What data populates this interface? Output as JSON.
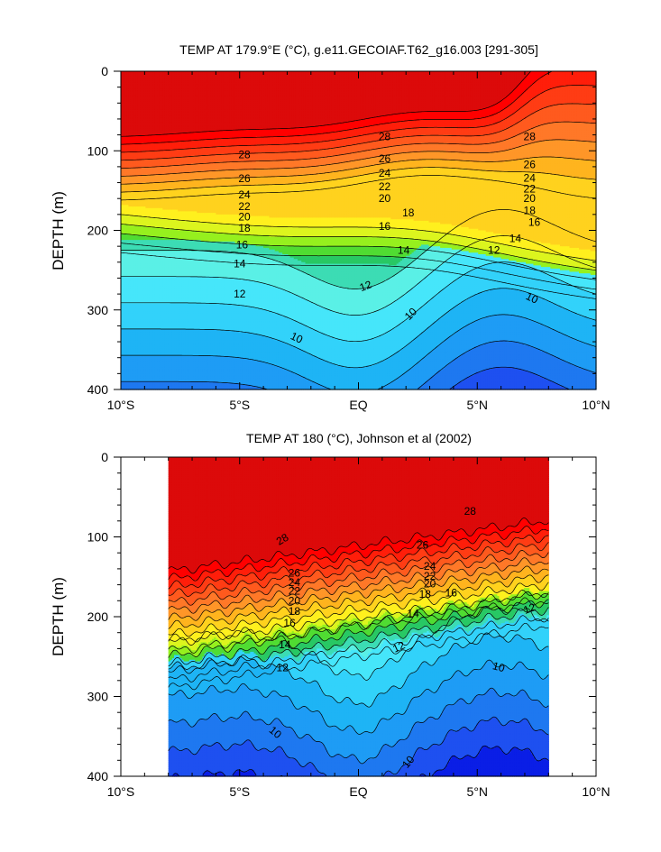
{
  "chart_data": [
    {
      "type": "contour",
      "title": "TEMP AT 179.9°E (°C), g.e11.GECOIAF.T62_g16.003 [291-305]",
      "ylabel": "DEPTH (m)",
      "xlim": [
        -10,
        10
      ],
      "ylim": [
        0,
        400
      ],
      "y_reversed": true,
      "x_ticks": [
        -10,
        -5,
        0,
        5,
        10
      ],
      "x_tick_labels": [
        "10°S",
        "5°S",
        "EQ",
        "5°N",
        "10°N"
      ],
      "y_ticks": [
        0,
        100,
        200,
        300,
        400
      ],
      "y_tick_labels": [
        "0",
        "100",
        "200",
        "300",
        "400"
      ],
      "data_xrange": [
        -10,
        10
      ],
      "levels": [
        8,
        9,
        10,
        11,
        12,
        13,
        14,
        15,
        16,
        17,
        18,
        19,
        20,
        21,
        22,
        23,
        24,
        25,
        26,
        27,
        28,
        29
      ],
      "fill_colors": [
        "#0a1ee6",
        "#1e50f0",
        "#1e78f0",
        "#1e9cf5",
        "#1eb4f5",
        "#32d2fa",
        "#46e6fa",
        "#5af0e6",
        "#3cdcb4",
        "#28c864",
        "#50dc32",
        "#96f01e",
        "#dcf51e",
        "#fff01e",
        "#ffd21e",
        "#ffb41e",
        "#ff9628",
        "#ff7828",
        "#ff5a1e",
        "#ff3c14",
        "#ff1e0a",
        "#ff0000",
        "#dc0a0a"
      ],
      "labels": [
        {
          "text": "28",
          "x": -4.8,
          "y": 105,
          "rot": 0
        },
        {
          "text": "28",
          "x": 1.1,
          "y": 82,
          "rot": 0
        },
        {
          "text": "28",
          "x": 7.2,
          "y": 82,
          "rot": 0
        },
        {
          "text": "26",
          "x": -4.8,
          "y": 135,
          "rot": 0
        },
        {
          "text": "26",
          "x": 1.1,
          "y": 110,
          "rot": 0
        },
        {
          "text": "26",
          "x": 7.2,
          "y": 117,
          "rot": 0
        },
        {
          "text": "24",
          "x": -4.8,
          "y": 155,
          "rot": 0
        },
        {
          "text": "24",
          "x": 1.1,
          "y": 128,
          "rot": 0
        },
        {
          "text": "24",
          "x": 7.2,
          "y": 134,
          "rot": 0
        },
        {
          "text": "22",
          "x": -4.8,
          "y": 170,
          "rot": 0
        },
        {
          "text": "22",
          "x": 1.1,
          "y": 145,
          "rot": 0
        },
        {
          "text": "22",
          "x": 7.2,
          "y": 148,
          "rot": 0
        },
        {
          "text": "20",
          "x": -4.8,
          "y": 183,
          "rot": 0
        },
        {
          "text": "20",
          "x": 1.1,
          "y": 160,
          "rot": 0
        },
        {
          "text": "20",
          "x": 7.2,
          "y": 160,
          "rot": 0
        },
        {
          "text": "18",
          "x": -4.8,
          "y": 197,
          "rot": 0
        },
        {
          "text": "18",
          "x": 2.1,
          "y": 178,
          "rot": 0
        },
        {
          "text": "18",
          "x": 7.2,
          "y": 175,
          "rot": 0
        },
        {
          "text": "16",
          "x": -4.9,
          "y": 218,
          "rot": 0
        },
        {
          "text": "16",
          "x": 1.1,
          "y": 195,
          "rot": 0
        },
        {
          "text": "16",
          "x": 7.4,
          "y": 190,
          "rot": 0
        },
        {
          "text": "14",
          "x": -5.0,
          "y": 242,
          "rot": 0
        },
        {
          "text": "14",
          "x": 1.9,
          "y": 225,
          "rot": 0
        },
        {
          "text": "14",
          "x": 6.6,
          "y": 210,
          "rot": 0
        },
        {
          "text": "12",
          "x": -5.0,
          "y": 280,
          "rot": 0
        },
        {
          "text": "12",
          "x": 0.3,
          "y": 270,
          "rot": -20
        },
        {
          "text": "12",
          "x": 5.7,
          "y": 225,
          "rot": 0
        },
        {
          "text": "10",
          "x": -2.6,
          "y": 335,
          "rot": 25
        },
        {
          "text": "10",
          "x": 2.2,
          "y": 305,
          "rot": -45
        },
        {
          "text": "10",
          "x": 7.3,
          "y": 285,
          "rot": 25
        }
      ]
    },
    {
      "type": "contour",
      "title": "TEMP AT 180 (°C), Johnson et al (2002)",
      "ylabel": "DEPTH (m)",
      "xlim": [
        -10,
        10
      ],
      "ylim": [
        0,
        400
      ],
      "y_reversed": true,
      "x_ticks": [
        -10,
        -5,
        0,
        5,
        10
      ],
      "x_tick_labels": [
        "10°S",
        "5°S",
        "EQ",
        "5°N",
        "10°N"
      ],
      "y_ticks": [
        0,
        100,
        200,
        300,
        400
      ],
      "y_tick_labels": [
        "0",
        "100",
        "200",
        "300",
        "400"
      ],
      "data_xrange": [
        -8,
        8
      ],
      "levels": [
        8,
        9,
        10,
        11,
        12,
        13,
        14,
        15,
        16,
        17,
        18,
        19,
        20,
        21,
        22,
        23,
        24,
        25,
        26,
        27,
        28,
        29
      ],
      "fill_colors": [
        "#0a1ee6",
        "#1e50f0",
        "#1e78f0",
        "#1e9cf5",
        "#1eb4f5",
        "#32d2fa",
        "#46e6fa",
        "#5af0e6",
        "#3cdcb4",
        "#28c864",
        "#50dc32",
        "#96f01e",
        "#dcf51e",
        "#fff01e",
        "#ffd21e",
        "#ffb41e",
        "#ff9628",
        "#ff7828",
        "#ff5a1e",
        "#ff3c14",
        "#ff1e0a",
        "#ff0000",
        "#dc0a0a"
      ],
      "labels": [
        {
          "text": "28",
          "x": -3.2,
          "y": 103,
          "rot": -30
        },
        {
          "text": "28",
          "x": 4.7,
          "y": 68,
          "rot": 0
        },
        {
          "text": "26",
          "x": -2.7,
          "y": 145,
          "rot": 0
        },
        {
          "text": "26",
          "x": 2.7,
          "y": 110,
          "rot": 0
        },
        {
          "text": "24",
          "x": -2.7,
          "y": 157,
          "rot": 0
        },
        {
          "text": "24",
          "x": 3.0,
          "y": 137,
          "rot": 0
        },
        {
          "text": "22",
          "x": -2.7,
          "y": 168,
          "rot": 0
        },
        {
          "text": "22",
          "x": 3.0,
          "y": 149,
          "rot": 0
        },
        {
          "text": "20",
          "x": -2.7,
          "y": 180,
          "rot": 0
        },
        {
          "text": "20",
          "x": 3.0,
          "y": 159,
          "rot": 0
        },
        {
          "text": "18",
          "x": -2.7,
          "y": 193,
          "rot": 0
        },
        {
          "text": "18",
          "x": 2.8,
          "y": 172,
          "rot": 0
        },
        {
          "text": "16",
          "x": -2.9,
          "y": 208,
          "rot": 0
        },
        {
          "text": "16",
          "x": 3.9,
          "y": 170,
          "rot": 0
        },
        {
          "text": "14",
          "x": -3.1,
          "y": 235,
          "rot": 0
        },
        {
          "text": "14",
          "x": 2.3,
          "y": 196,
          "rot": 0
        },
        {
          "text": "12",
          "x": -3.2,
          "y": 264,
          "rot": 0
        },
        {
          "text": "12",
          "x": 1.7,
          "y": 238,
          "rot": -25
        },
        {
          "text": "12",
          "x": 7.2,
          "y": 190,
          "rot": -20
        },
        {
          "text": "10",
          "x": -3.5,
          "y": 345,
          "rot": 40
        },
        {
          "text": "10",
          "x": 2.1,
          "y": 382,
          "rot": -50
        },
        {
          "text": "10",
          "x": 5.9,
          "y": 263,
          "rot": 15
        }
      ]
    }
  ]
}
